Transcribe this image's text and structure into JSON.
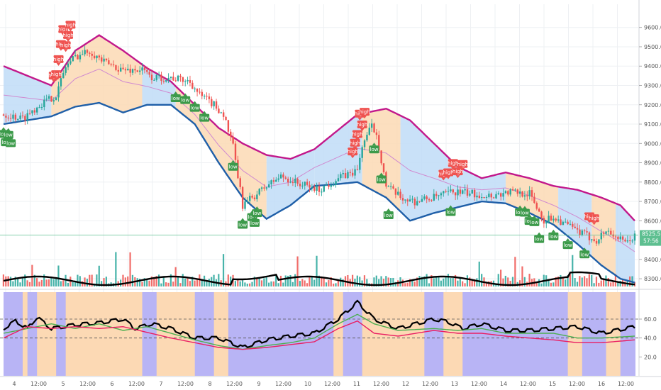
{
  "colors": {
    "bull": "#26a69a",
    "bear": "#ef5350",
    "band_upper": "#c2188b",
    "band_lower": "#1f5fa8",
    "fill_orange": "#fcd9b4",
    "fill_blue": "#bfdcf7",
    "high_flag": "#ef5350",
    "low_flag": "#3c9a4a",
    "purple_bg": "#b8b4f5",
    "orange_bg": "#fcd9b4"
  },
  "flags": {
    "high": "high",
    "low": "low"
  },
  "last_price": {
    "value": "8525.5",
    "countdown": "57:56",
    "color": "#5dbf90"
  },
  "price_axis": {
    "ticks": [
      "9600.0",
      "9500.0",
      "9400.0",
      "9300.0",
      "9200.0",
      "9100.0",
      "9000.0",
      "8900.0",
      "8800.0",
      "8700.0",
      "8600.0",
      "8400.0",
      "8300.0"
    ]
  },
  "osc_axis": {
    "ticks": [
      "60.0",
      "40.0",
      "20.0"
    ]
  },
  "x_axis": {
    "ticks": [
      "4",
      "12:00",
      "5",
      "12:00",
      "6",
      "12:00",
      "7",
      "12:00",
      "8",
      "12:00",
      "9",
      "12:00",
      "10",
      "12:00",
      "11",
      "12:00",
      "12",
      "12:00",
      "13",
      "12:00",
      "14",
      "12:00",
      "15",
      "12:00",
      "16",
      "12:00"
    ]
  },
  "chart_data": [
    {
      "type": "candlestick",
      "title": "",
      "ylim": [
        8260,
        9720
      ],
      "y_ticks": [
        9600,
        9500,
        9400,
        9300,
        9200,
        9100,
        9000,
        8900,
        8800,
        8700,
        8600,
        8400,
        8300
      ],
      "x_tick_labels": [
        "4",
        "12:00",
        "5",
        "12:00",
        "6",
        "12:00",
        "7",
        "12:00",
        "8",
        "12:00",
        "9",
        "12:00",
        "10",
        "12:00",
        "11",
        "12:00",
        "12",
        "12:00",
        "13",
        "12:00",
        "14",
        "12:00",
        "15",
        "12:00",
        "16",
        "12:00"
      ],
      "close_path": [
        [
          0,
          9150
        ],
        [
          8,
          9130
        ],
        [
          15,
          9200
        ],
        [
          22,
          9250
        ],
        [
          26,
          9400
        ],
        [
          30,
          9450
        ],
        [
          36,
          9480
        ],
        [
          42,
          9420
        ],
        [
          50,
          9380
        ],
        [
          58,
          9380
        ],
        [
          62,
          9340
        ],
        [
          70,
          9340
        ],
        [
          78,
          9320
        ],
        [
          82,
          9250
        ],
        [
          88,
          9200
        ],
        [
          92,
          9150
        ],
        [
          96,
          8980
        ],
        [
          100,
          8680
        ],
        [
          104,
          8720
        ],
        [
          110,
          8780
        ],
        [
          116,
          8830
        ],
        [
          124,
          8790
        ],
        [
          132,
          8760
        ],
        [
          140,
          8820
        ],
        [
          148,
          8860
        ],
        [
          150,
          8990
        ],
        [
          154,
          9090
        ],
        [
          156,
          9050
        ],
        [
          160,
          8780
        ],
        [
          166,
          8720
        ],
        [
          172,
          8700
        ],
        [
          180,
          8720
        ],
        [
          188,
          8750
        ],
        [
          196,
          8740
        ],
        [
          204,
          8730
        ],
        [
          212,
          8750
        ],
        [
          220,
          8740
        ],
        [
          226,
          8600
        ],
        [
          230,
          8620
        ],
        [
          234,
          8590
        ],
        [
          238,
          8560
        ],
        [
          244,
          8520
        ],
        [
          248,
          8500
        ],
        [
          252,
          8550
        ],
        [
          256,
          8520
        ],
        [
          260,
          8480
        ],
        [
          264,
          8520
        ]
      ],
      "last_price": 8525.5,
      "upper_band": [
        [
          0,
          9400
        ],
        [
          20,
          9300
        ],
        [
          30,
          9480
        ],
        [
          40,
          9560
        ],
        [
          50,
          9480
        ],
        [
          60,
          9390
        ],
        [
          70,
          9320
        ],
        [
          80,
          9200
        ],
        [
          90,
          9080
        ],
        [
          100,
          9000
        ],
        [
          110,
          8940
        ],
        [
          120,
          8920
        ],
        [
          130,
          8970
        ],
        [
          140,
          9070
        ],
        [
          148,
          9150
        ],
        [
          160,
          9180
        ],
        [
          170,
          9120
        ],
        [
          180,
          9000
        ],
        [
          190,
          8880
        ],
        [
          200,
          8820
        ],
        [
          210,
          8850
        ],
        [
          220,
          8820
        ],
        [
          230,
          8780
        ],
        [
          240,
          8760
        ],
        [
          250,
          8720
        ],
        [
          258,
          8680
        ],
        [
          264,
          8600
        ]
      ],
      "lower_band": [
        [
          0,
          9100
        ],
        [
          20,
          9140
        ],
        [
          30,
          9190
        ],
        [
          40,
          9210
        ],
        [
          50,
          9160
        ],
        [
          60,
          9200
        ],
        [
          70,
          9200
        ],
        [
          80,
          9100
        ],
        [
          90,
          8900
        ],
        [
          100,
          8720
        ],
        [
          110,
          8610
        ],
        [
          120,
          8680
        ],
        [
          130,
          8780
        ],
        [
          140,
          8790
        ],
        [
          148,
          8800
        ],
        [
          160,
          8720
        ],
        [
          170,
          8600
        ],
        [
          180,
          8640
        ],
        [
          190,
          8670
        ],
        [
          200,
          8700
        ],
        [
          210,
          8690
        ],
        [
          220,
          8640
        ],
        [
          230,
          8580
        ],
        [
          240,
          8480
        ],
        [
          250,
          8370
        ],
        [
          258,
          8300
        ],
        [
          264,
          8280
        ]
      ],
      "high_flags": [
        21,
        22,
        23,
        24,
        25,
        26,
        27,
        28,
        146,
        147,
        148,
        149,
        150,
        151,
        184,
        186,
        188,
        190,
        192,
        245,
        247
      ],
      "low_flags": [
        0,
        1,
        2,
        3,
        72,
        76,
        80,
        84,
        96,
        100,
        104,
        105,
        106,
        155,
        158,
        161,
        187,
        216,
        218,
        220,
        222,
        224,
        230,
        236,
        243
      ]
    },
    {
      "type": "oscillator",
      "ylim": [
        0,
        90
      ],
      "y_ticks": [
        60,
        40,
        20
      ],
      "lines": [
        {
          "color": "#000000",
          "points": [
            [
              0,
              50
            ],
            [
              5,
              58
            ],
            [
              10,
              50
            ],
            [
              14,
              62
            ],
            [
              20,
              50
            ],
            [
              30,
              54
            ],
            [
              40,
              56
            ],
            [
              50,
              60
            ],
            [
              55,
              50
            ],
            [
              62,
              55
            ],
            [
              70,
              50
            ],
            [
              80,
              40
            ],
            [
              90,
              40
            ],
            [
              100,
              30
            ],
            [
              110,
              38
            ],
            [
              120,
              42
            ],
            [
              130,
              45
            ],
            [
              140,
              60
            ],
            [
              148,
              78
            ],
            [
              155,
              60
            ],
            [
              165,
              50
            ],
            [
              180,
              60
            ],
            [
              186,
              57
            ],
            [
              192,
              50
            ],
            [
              200,
              55
            ],
            [
              210,
              48
            ],
            [
              220,
              48
            ],
            [
              230,
              50
            ],
            [
              240,
              52
            ],
            [
              250,
              45
            ],
            [
              260,
              50
            ],
            [
              264,
              52
            ]
          ]
        },
        {
          "color": "#4caf50",
          "points": [
            [
              0,
              45
            ],
            [
              10,
              50
            ],
            [
              20,
              55
            ],
            [
              30,
              50
            ],
            [
              40,
              55
            ],
            [
              50,
              48
            ],
            [
              60,
              52
            ],
            [
              70,
              45
            ],
            [
              80,
              38
            ],
            [
              90,
              32
            ],
            [
              100,
              28
            ],
            [
              110,
              32
            ],
            [
              120,
              35
            ],
            [
              130,
              40
            ],
            [
              140,
              55
            ],
            [
              148,
              65
            ],
            [
              155,
              55
            ],
            [
              165,
              48
            ],
            [
              180,
              50
            ],
            [
              190,
              48
            ],
            [
              200,
              50
            ],
            [
              210,
              45
            ],
            [
              220,
              45
            ],
            [
              230,
              45
            ],
            [
              240,
              40
            ],
            [
              250,
              40
            ],
            [
              264,
              42
            ]
          ]
        },
        {
          "color": "#e91e63",
          "points": [
            [
              0,
              40
            ],
            [
              10,
              52
            ],
            [
              20,
              50
            ],
            [
              30,
              52
            ],
            [
              40,
              50
            ],
            [
              50,
              52
            ],
            [
              60,
              46
            ],
            [
              70,
              40
            ],
            [
              80,
              35
            ],
            [
              90,
              30
            ],
            [
              100,
              28
            ],
            [
              110,
              30
            ],
            [
              120,
              33
            ],
            [
              130,
              36
            ],
            [
              140,
              50
            ],
            [
              148,
              58
            ],
            [
              155,
              45
            ],
            [
              165,
              42
            ],
            [
              180,
              48
            ],
            [
              190,
              45
            ],
            [
              200,
              45
            ],
            [
              210,
              42
            ],
            [
              220,
              40
            ],
            [
              230,
              38
            ],
            [
              240,
              35
            ],
            [
              250,
              35
            ],
            [
              264,
              38
            ]
          ]
        }
      ]
    }
  ]
}
